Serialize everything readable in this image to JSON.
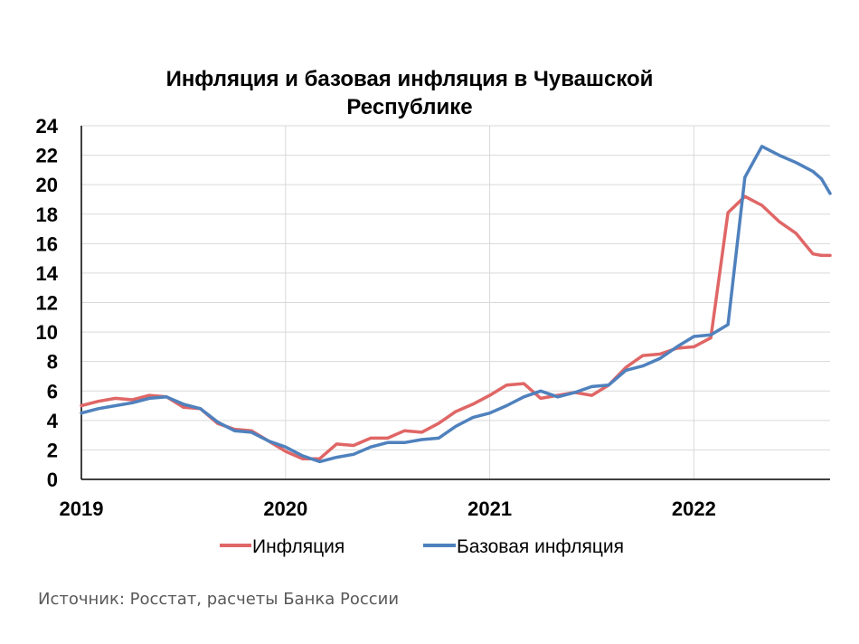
{
  "source_text": "Источник: Росстат, расчеты Банка России",
  "chart_data": {
    "type": "line",
    "title_lines": [
      "Инфляция и базовая инфляция в Чувашской",
      "Республике"
    ],
    "ylim": [
      0,
      24
    ],
    "yticks": [
      0,
      2,
      4,
      6,
      8,
      10,
      12,
      14,
      16,
      18,
      20,
      22,
      24
    ],
    "xlim": [
      2019.0,
      2022.667
    ],
    "xticks": [
      2019,
      2020,
      2021,
      2022
    ],
    "x_tick_labels": [
      "2019",
      "2020",
      "2021",
      "2022"
    ],
    "grid": true,
    "legend_position": "bottom",
    "x": [
      2019.0,
      2019.083,
      2019.167,
      2019.25,
      2019.333,
      2019.417,
      2019.5,
      2019.583,
      2019.667,
      2019.75,
      2019.833,
      2019.917,
      2020.0,
      2020.083,
      2020.167,
      2020.25,
      2020.333,
      2020.417,
      2020.5,
      2020.583,
      2020.667,
      2020.75,
      2020.833,
      2020.917,
      2021.0,
      2021.083,
      2021.167,
      2021.25,
      2021.333,
      2021.417,
      2021.5,
      2021.583,
      2021.667,
      2021.75,
      2021.833,
      2021.917,
      2022.0,
      2022.083,
      2022.167,
      2022.25,
      2022.333,
      2022.417,
      2022.5,
      2022.583,
      2022.625,
      2022.667
    ],
    "series": [
      {
        "name": "Инфляция",
        "color": "#E06666",
        "values": [
          5.0,
          5.3,
          5.5,
          5.4,
          5.7,
          5.6,
          4.9,
          4.8,
          3.8,
          3.4,
          3.3,
          2.6,
          1.9,
          1.4,
          1.4,
          2.4,
          2.3,
          2.8,
          2.8,
          3.3,
          3.2,
          3.8,
          4.6,
          5.1,
          5.7,
          6.4,
          6.5,
          5.5,
          5.7,
          5.9,
          5.7,
          6.4,
          7.6,
          8.4,
          8.5,
          8.9,
          9.0,
          9.6,
          18.1,
          19.2,
          18.6,
          17.5,
          16.7,
          15.3,
          15.2,
          15.2
        ]
      },
      {
        "name": "Базовая инфляция",
        "color": "#4F81BD",
        "values": [
          4.5,
          4.8,
          5.0,
          5.2,
          5.5,
          5.6,
          5.1,
          4.8,
          3.9,
          3.3,
          3.2,
          2.6,
          2.2,
          1.6,
          1.2,
          1.5,
          1.7,
          2.2,
          2.5,
          2.5,
          2.7,
          2.8,
          3.6,
          4.2,
          4.5,
          5.0,
          5.6,
          6.0,
          5.6,
          5.9,
          6.3,
          6.4,
          7.4,
          7.7,
          8.2,
          9.0,
          9.7,
          9.8,
          10.5,
          20.5,
          22.6,
          22.0,
          21.5,
          20.9,
          20.4,
          19.4
        ]
      }
    ]
  }
}
